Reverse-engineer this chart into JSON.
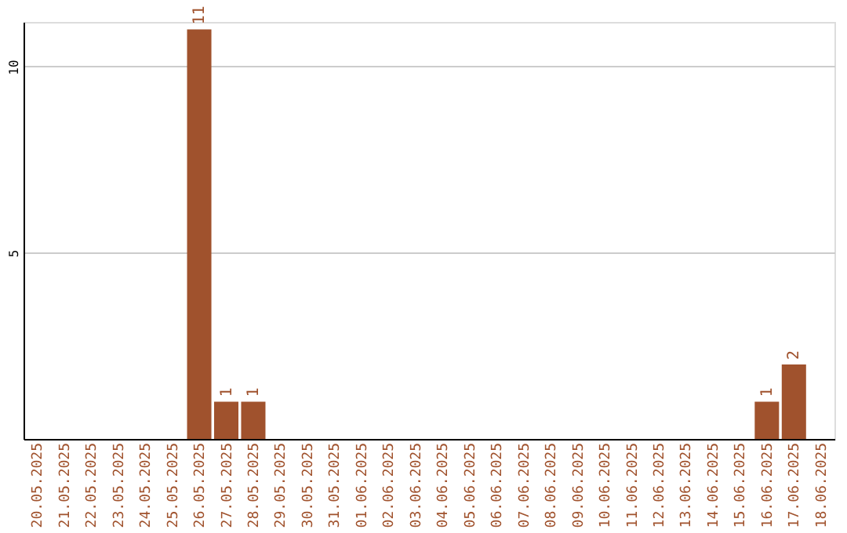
{
  "chart_data": {
    "type": "bar",
    "categories": [
      "20.05.2025",
      "21.05.2025",
      "22.05.2025",
      "23.05.2025",
      "24.05.2025",
      "25.05.2025",
      "26.05.2025",
      "27.05.2025",
      "28.05.2025",
      "29.05.2025",
      "30.05.2025",
      "31.05.2025",
      "01.06.2025",
      "02.06.2025",
      "03.06.2025",
      "04.06.2025",
      "05.06.2025",
      "06.06.2025",
      "07.06.2025",
      "08.06.2025",
      "09.06.2025",
      "10.06.2025",
      "11.06.2025",
      "12.06.2025",
      "13.06.2025",
      "14.06.2025",
      "15.06.2025",
      "16.06.2025",
      "17.06.2025",
      "18.06.2025"
    ],
    "values": [
      0,
      0,
      0,
      0,
      0,
      0,
      11,
      1,
      1,
      0,
      0,
      0,
      0,
      0,
      0,
      0,
      0,
      0,
      0,
      0,
      0,
      0,
      0,
      0,
      0,
      0,
      0,
      1,
      2,
      0
    ],
    "value_labels": [
      null,
      null,
      null,
      null,
      null,
      null,
      "11",
      "1",
      "1",
      null,
      null,
      null,
      null,
      null,
      null,
      null,
      null,
      null,
      null,
      null,
      null,
      null,
      null,
      null,
      null,
      null,
      null,
      "1",
      "2",
      null
    ],
    "color": "#a0522d",
    "ylim": [
      0,
      11.2
    ],
    "yticks": [
      5,
      10
    ],
    "grid": "y"
  }
}
